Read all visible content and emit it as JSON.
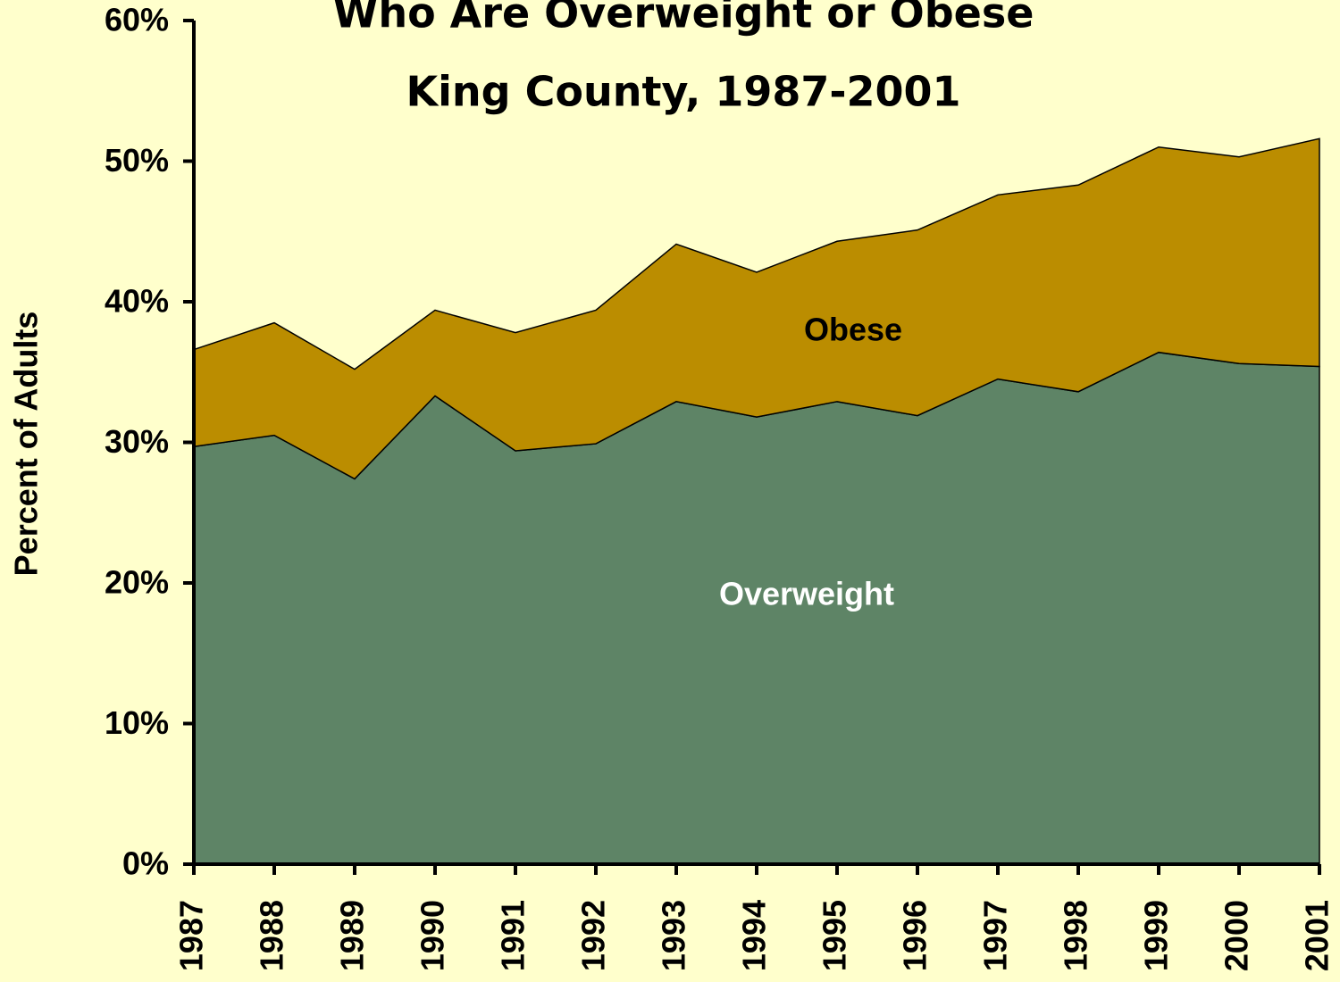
{
  "chart_data": {
    "type": "stacked_area",
    "title": [
      "Who Are Overweight or Obese",
      "King County, 1987-2001"
    ],
    "y_label": "Percent of Adults",
    "categories": [
      "1987",
      "1988",
      "1989",
      "1990",
      "1991",
      "1992",
      "1993",
      "1994",
      "1995",
      "1996",
      "1997",
      "1998",
      "1999",
      "2000",
      "2001"
    ],
    "series": [
      {
        "name": "Overweight",
        "color": "#5e8466",
        "label_color": "#ffffff",
        "values": [
          29.7,
          30.5,
          27.4,
          33.3,
          29.4,
          29.9,
          32.9,
          31.8,
          32.9,
          31.9,
          34.5,
          33.6,
          36.4,
          35.6,
          35.4
        ]
      },
      {
        "name": "Obese",
        "color": "#bb8d00",
        "label_color": "#000000",
        "values": [
          6.9,
          8.0,
          7.8,
          6.1,
          8.4,
          9.5,
          11.2,
          10.3,
          11.4,
          13.2,
          13.1,
          14.7,
          14.6,
          14.7,
          16.2
        ]
      }
    ],
    "ylim": [
      0,
      60
    ],
    "yticks": [
      {
        "value": 0,
        "label": "0%"
      },
      {
        "value": 10,
        "label": "10%"
      },
      {
        "value": 20,
        "label": "20%"
      },
      {
        "value": 30,
        "label": "30%"
      },
      {
        "value": 40,
        "label": "40%"
      },
      {
        "value": 50,
        "label": "50%"
      },
      {
        "value": 60,
        "label": "60%"
      }
    ],
    "grid": false
  }
}
